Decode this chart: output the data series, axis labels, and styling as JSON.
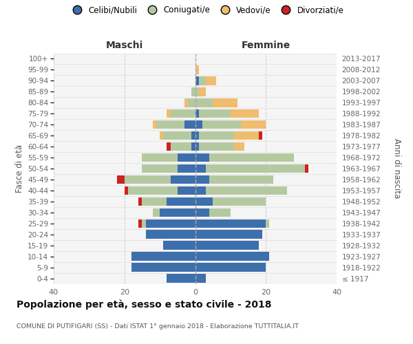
{
  "age_groups": [
    "100+",
    "95-99",
    "90-94",
    "85-89",
    "80-84",
    "75-79",
    "70-74",
    "65-69",
    "60-64",
    "55-59",
    "50-54",
    "45-49",
    "40-44",
    "35-39",
    "30-34",
    "25-29",
    "20-24",
    "15-19",
    "10-14",
    "5-9",
    "0-4"
  ],
  "birth_years": [
    "≤ 1917",
    "1918-1922",
    "1923-1927",
    "1928-1932",
    "1933-1937",
    "1938-1942",
    "1943-1947",
    "1948-1952",
    "1953-1957",
    "1958-1962",
    "1963-1967",
    "1968-1972",
    "1973-1977",
    "1978-1982",
    "1983-1987",
    "1988-1992",
    "1993-1997",
    "1998-2002",
    "2003-2007",
    "2008-2012",
    "2013-2017"
  ],
  "maschi": {
    "celibi": [
      0,
      0,
      0,
      0,
      0,
      0,
      3,
      1,
      1,
      5,
      5,
      7,
      5,
      8,
      10,
      14,
      14,
      9,
      18,
      18,
      8
    ],
    "coniugati": [
      0,
      0,
      0,
      1,
      2,
      7,
      8,
      8,
      6,
      10,
      10,
      13,
      14,
      7,
      2,
      1,
      0,
      0,
      0,
      0,
      0
    ],
    "vedovi": [
      0,
      0,
      0,
      0,
      1,
      1,
      1,
      1,
      0,
      0,
      0,
      0,
      0,
      0,
      0,
      0,
      0,
      0,
      0,
      0,
      0
    ],
    "divorziati": [
      0,
      0,
      0,
      0,
      0,
      0,
      0,
      0,
      1,
      0,
      0,
      2,
      1,
      1,
      0,
      1,
      0,
      0,
      0,
      0,
      0
    ]
  },
  "femmine": {
    "nubili": [
      0,
      0,
      1,
      0,
      0,
      1,
      2,
      1,
      1,
      4,
      3,
      4,
      3,
      5,
      4,
      20,
      19,
      18,
      21,
      20,
      3
    ],
    "coniugate": [
      0,
      0,
      2,
      1,
      5,
      9,
      11,
      10,
      10,
      24,
      28,
      18,
      23,
      15,
      6,
      1,
      0,
      0,
      0,
      0,
      0
    ],
    "vedove": [
      0,
      1,
      3,
      2,
      7,
      8,
      7,
      7,
      3,
      0,
      0,
      0,
      0,
      0,
      0,
      0,
      0,
      0,
      0,
      0,
      0
    ],
    "divorziate": [
      0,
      0,
      0,
      0,
      0,
      0,
      0,
      1,
      0,
      0,
      1,
      0,
      0,
      0,
      0,
      0,
      0,
      0,
      0,
      0,
      0
    ]
  },
  "colors": {
    "celibi": "#3d6fad",
    "coniugati": "#b5c9a0",
    "vedovi": "#f0bc6e",
    "divorziati": "#cc2222"
  },
  "xlim": 40,
  "bg_color": "#f5f5f5",
  "title": "Popolazione per età, sesso e stato civile - 2018",
  "subtitle": "COMUNE DI PUTIFIGARI (SS) - Dati ISTAT 1° gennaio 2018 - Elaborazione TUTTITALIA.IT",
  "ylabel_left": "Fasce di età",
  "ylabel_right": "Anni di nascita",
  "legend_labels": [
    "Celibi/Nubili",
    "Coniugati/e",
    "Vedovi/e",
    "Divorziati/e"
  ],
  "maschi_label": "Maschi",
  "femmine_label": "Femmine"
}
